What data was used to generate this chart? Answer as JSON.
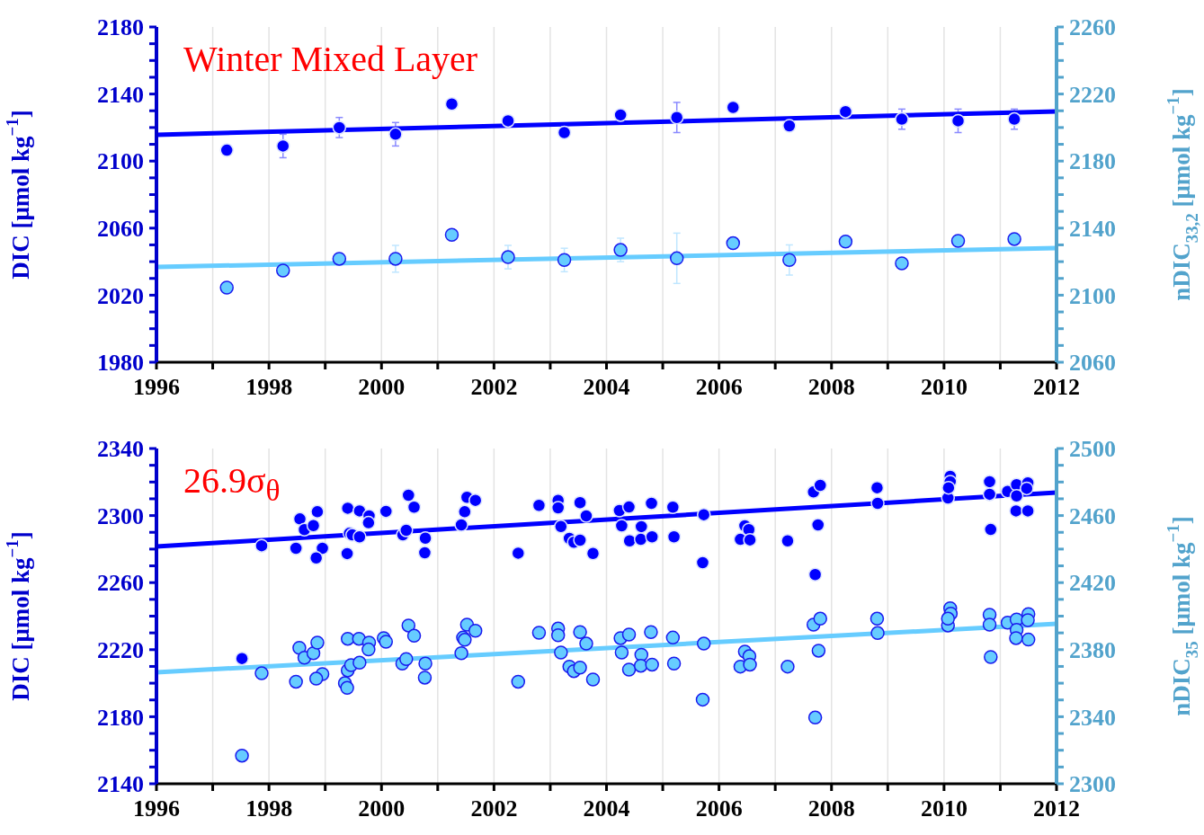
{
  "chart_data": [
    {
      "type": "scatter",
      "annotations": [
        "Winter Mixed Layer"
      ],
      "ylabel": "DIC [μmol kg$^{−1}$]",
      "y2label": "nDIC$_{33,2}$ [μmol kg$^{−1}$]",
      "xlim": [
        1996,
        2012
      ],
      "xticks": [
        1996,
        {
          "value": 1997,
          "label": null
        },
        1998,
        {
          "value": 1999,
          "label": null
        },
        2000,
        {
          "value": 2001,
          "label": null
        },
        2002,
        {
          "value": 2003,
          "label": null
        },
        2004,
        {
          "value": 2005,
          "label": null
        },
        2006,
        {
          "value": 2007,
          "label": null
        },
        2008,
        {
          "value": 2009,
          "label": null
        },
        2010,
        {
          "value": 2011,
          "label": null
        },
        2012
      ],
      "ylim": [
        1980,
        2180
      ],
      "yticks": [
        1980,
        {
          "value": 1990,
          "label": null
        },
        {
          "value": 2000,
          "label": null
        },
        {
          "value": 2010,
          "label": null
        },
        2020,
        {
          "value": 2030,
          "label": null
        },
        {
          "value": 2040,
          "label": null
        },
        {
          "value": 2050,
          "label": null
        },
        2060,
        {
          "value": 2070,
          "label": null
        },
        {
          "value": 2080,
          "label": null
        },
        {
          "value": 2090,
          "label": null
        },
        2100,
        {
          "value": 2110,
          "label": null
        },
        {
          "value": 2120,
          "label": null
        },
        {
          "value": 2130,
          "label": null
        },
        2140,
        {
          "value": 2150,
          "label": null
        },
        {
          "value": 2160,
          "label": null
        },
        {
          "value": 2170,
          "label": null
        },
        2180
      ],
      "y2lim": [
        2060,
        2260
      ],
      "y2ticks": [
        2060,
        {
          "value": 2070,
          "label": null
        },
        {
          "value": 2080,
          "label": null
        },
        {
          "value": 2090,
          "label": null
        },
        2100,
        {
          "value": 2110,
          "label": null
        },
        {
          "value": 2120,
          "label": null
        },
        {
          "value": 2130,
          "label": null
        },
        2140,
        {
          "value": 2150,
          "label": null
        },
        {
          "value": 2160,
          "label": null
        },
        {
          "value": 2170,
          "label": null
        },
        2180,
        {
          "value": 2190,
          "label": null
        },
        {
          "value": 2200,
          "label": null
        },
        {
          "value": 2210,
          "label": null
        },
        2220,
        {
          "value": 2230,
          "label": null
        },
        {
          "value": 2240,
          "label": null
        },
        {
          "value": 2250,
          "label": null
        },
        2260
      ],
      "grid": "x",
      "marker": "circle",
      "series": [
        {
          "color": "#0000ff",
          "x": [
            1997.25,
            1998.25,
            1999.25,
            2000.25,
            2001.25,
            2002.25,
            2003.25,
            2004.25,
            2005.25,
            2006.25,
            2007.25,
            2008.25,
            2009.25,
            2010.25,
            2011.25
          ],
          "values": [
            2106.5,
            2109,
            2120,
            2116,
            2134,
            2124,
            2117,
            2127.5,
            2126,
            2132,
            2121,
            2129.5,
            2125,
            2124,
            2125
          ],
          "errors": [
            null,
            7,
            6,
            7,
            null,
            2,
            null,
            2,
            9,
            null,
            2,
            null,
            6,
            7,
            6
          ]
        },
        {
          "type": "line",
          "marker": "none",
          "color": "#0000ff",
          "x": [
            1996,
            2012
          ],
          "values": [
            2115.7,
            2129.6
          ]
        },
        {
          "axis": "y2",
          "color": "#66ccff",
          "x": [
            1997.25,
            1998.25,
            1999.25,
            2000.25,
            2001.25,
            2002.25,
            2003.25,
            2004.25,
            2005.25,
            2006.25,
            2007.25,
            2008.25,
            2009.25,
            2010.25,
            2011.25
          ],
          "values": [
            2104.5,
            2114.7,
            2121.7,
            2121.7,
            2136,
            2122.7,
            2121,
            2127,
            2122,
            2131,
            2121,
            2132,
            2119,
            2132.4,
            2133.5
          ],
          "errors": [
            null,
            null,
            null,
            8,
            null,
            7,
            7,
            7,
            15,
            null,
            9,
            null,
            null,
            null,
            null
          ]
        },
        {
          "type": "line",
          "marker": "none",
          "axis": "y2",
          "color": "#66ccff",
          "x": [
            1996,
            2012
          ],
          "values": [
            2116.8,
            2128.1
          ]
        }
      ]
    },
    {
      "type": "scatter",
      "annotations": [
        "26.9σ$_{θ}$"
      ],
      "ylabel": "DIC [μmol kg$^{−1}$]",
      "y2label": "nDIC$_{35}$ [μmol kg$^{−1}$]",
      "xlim": [
        1996,
        2012
      ],
      "xticks": [
        1996,
        {
          "value": 1997,
          "label": null
        },
        1998,
        {
          "value": 1999,
          "label": null
        },
        2000,
        {
          "value": 2001,
          "label": null
        },
        2002,
        {
          "value": 2003,
          "label": null
        },
        2004,
        {
          "value": 2005,
          "label": null
        },
        2006,
        {
          "value": 2007,
          "label": null
        },
        2008,
        {
          "value": 2009,
          "label": null
        },
        2010,
        {
          "value": 2011,
          "label": null
        },
        2012
      ],
      "ylim": [
        2140,
        2340
      ],
      "yticks": [
        2140,
        {
          "value": 2150,
          "label": null
        },
        {
          "value": 2160,
          "label": null
        },
        {
          "value": 2170,
          "label": null
        },
        2180,
        {
          "value": 2190,
          "label": null
        },
        {
          "value": 2200,
          "label": null
        },
        {
          "value": 2210,
          "label": null
        },
        2220,
        {
          "value": 2230,
          "label": null
        },
        {
          "value": 2240,
          "label": null
        },
        {
          "value": 2250,
          "label": null
        },
        2260,
        {
          "value": 2270,
          "label": null
        },
        {
          "value": 2280,
          "label": null
        },
        {
          "value": 2290,
          "label": null
        },
        2300,
        {
          "value": 2310,
          "label": null
        },
        {
          "value": 2320,
          "label": null
        },
        {
          "value": 2330,
          "label": null
        },
        2340
      ],
      "y2lim": [
        2300,
        2500
      ],
      "y2ticks": [
        2300,
        {
          "value": 2310,
          "label": null
        },
        {
          "value": 2320,
          "label": null
        },
        {
          "value": 2330,
          "label": null
        },
        2340,
        {
          "value": 2350,
          "label": null
        },
        {
          "value": 2360,
          "label": null
        },
        {
          "value": 2370,
          "label": null
        },
        2380,
        {
          "value": 2390,
          "label": null
        },
        {
          "value": 2400,
          "label": null
        },
        {
          "value": 2410,
          "label": null
        },
        2420,
        {
          "value": 2430,
          "label": null
        },
        {
          "value": 2440,
          "label": null
        },
        {
          "value": 2450,
          "label": null
        },
        2460,
        {
          "value": 2470,
          "label": null
        },
        {
          "value": 2480,
          "label": null
        },
        {
          "value": 2490,
          "label": null
        },
        2500
      ],
      "grid": "x",
      "marker": "circle",
      "series": [
        {
          "color": "#0000ff",
          "x": [
            1997.52,
            1997.87,
            1998.48,
            1998.55,
            1998.63,
            1998.79,
            1998.86,
            1998.95,
            1998.84,
            1999.4,
            1999.39,
            1999.43,
            1999.48,
            1999.61,
            1999.61,
            1999.78,
            1999.77,
            2000.08,
            2000.38,
            2000.44,
            2000.48,
            2000.58,
            2000.78,
            2000.77,
            2001.42,
            2001.48,
            2001.52,
            2001.67,
            2002.43,
            2002.8,
            2003.14,
            2003.14,
            2003.19,
            2003.34,
            2003.42,
            2003.53,
            2003.53,
            2003.64,
            2003.76,
            2004.23,
            2004.4,
            2004.27,
            2004.41,
            2004.62,
            2004.61,
            2004.81,
            2004.8,
            2005.18,
            2005.2,
            2005.73,
            2005.71,
            2006.46,
            2006.53,
            2006.38,
            2006.55,
            2007.22,
            2007.76,
            2007.71,
            2007.68,
            2007.8,
            2008.81,
            2008.82,
            2010.07,
            2010.11,
            2010.11,
            2010.08,
            2010.81,
            2010.81,
            2010.83,
            2011.13,
            2011.29,
            2011.29,
            2011.28,
            2011.49,
            2011.49,
            2011.47
          ],
          "values": [
            2214.7,
            2282,
            2280.5,
            2298,
            2291.6,
            2294,
            2302.3,
            2280.5,
            2274.7,
            2304.4,
            2277.3,
            2289.4,
            2288.5,
            2302.8,
            2287.3,
            2299.8,
            2295.7,
            2302.5,
            2288.5,
            2291.2,
            2312.1,
            2305,
            2286.5,
            2277.8,
            2294.4,
            2302.3,
            2310.9,
            2309.1,
            2277.6,
            2306.1,
            2309.1,
            2304.6,
            2293.5,
            2286.4,
            2284.1,
            2285.3,
            2307.7,
            2299.8,
            2277.4,
            2303,
            2305.1,
            2293.9,
            2284.9,
            2293.4,
            2285.8,
            2287.3,
            2307.3,
            2305,
            2287.3,
            2300.5,
            2271.9,
            2293.9,
            2291.6,
            2285.8,
            2285.5,
            2284.9,
            2294.4,
            2264.8,
            2314.1,
            2318,
            2316.6,
            2307.3,
            2310.5,
            2323.4,
            2320.2,
            2316.6,
            2320.2,
            2312.7,
            2291.7,
            2314.4,
            2318.4,
            2311.7,
            2302.8,
            2302.8,
            2319.5,
            2316.2
          ]
        },
        {
          "type": "line",
          "marker": "none",
          "color": "#0000ff",
          "x": [
            1996,
            2012
          ],
          "values": [
            2281.6,
            2313.7
          ]
        },
        {
          "axis": "y2",
          "color": "#66ccff",
          "x": [
            1997.52,
            1997.87,
            1998.48,
            1998.54,
            1998.63,
            1998.79,
            1998.86,
            1998.95,
            1998.84,
            1999.4,
            1999.35,
            1999.39,
            1999.4,
            1999.46,
            1999.61,
            1999.6,
            1999.78,
            1999.77,
            2000.04,
            2000.08,
            2000.37,
            2000.44,
            2000.48,
            2000.58,
            2000.78,
            2000.77,
            2001.42,
            2001.45,
            2001.48,
            2001.52,
            2001.67,
            2002.43,
            2002.8,
            2003.14,
            2003.14,
            2003.19,
            2003.34,
            2003.42,
            2003.53,
            2003.53,
            2003.64,
            2003.76,
            2004.25,
            2004.4,
            2004.27,
            2004.4,
            2004.62,
            2004.61,
            2004.81,
            2004.79,
            2005.18,
            2005.2,
            2005.73,
            2005.71,
            2006.46,
            2006.54,
            2006.38,
            2006.55,
            2007.22,
            2007.77,
            2007.71,
            2007.68,
            2007.8,
            2008.81,
            2008.82,
            2010.07,
            2010.11,
            2010.12,
            2010.07,
            2010.81,
            2010.81,
            2010.83,
            2011.13,
            2011.29,
            2011.29,
            2011.28,
            2011.5,
            2011.5,
            2011.49
          ],
          "values": [
            2316.8,
            2365.9,
            2360.9,
            2381.1,
            2375.2,
            2377.9,
            2384.2,
            2365.4,
            2362.7,
            2386.5,
            2360,
            2357.2,
            2367.6,
            2370.8,
            2372.2,
            2386.5,
            2384.2,
            2380.1,
            2386.9,
            2384.7,
            2371.7,
            2374.4,
            2394.4,
            2388.3,
            2371.7,
            2363.3,
            2377.9,
            2387.2,
            2385.9,
            2394.9,
            2391.3,
            2360.9,
            2390.1,
            2392.6,
            2388.6,
            2378.3,
            2369.9,
            2367.2,
            2369.3,
            2390.5,
            2383.6,
            2362.2,
            2386.9,
            2389,
            2378.3,
            2368.1,
            2377,
            2370.4,
            2371.1,
            2390.5,
            2387.2,
            2371.7,
            2383.6,
            2350.2,
            2378.8,
            2376.1,
            2369.9,
            2371.1,
            2369.9,
            2379.4,
            2339.5,
            2394.9,
            2398.5,
            2398.5,
            2389.9,
            2394.4,
            2404.7,
            2401.5,
            2398.5,
            2400.8,
            2394.9,
            2375.6,
            2396.1,
            2398,
            2391.8,
            2386.9,
            2386,
            2401.2,
            2397.6
          ]
        },
        {
          "type": "line",
          "marker": "none",
          "axis": "y2",
          "color": "#66ccff",
          "x": [
            1996,
            2012
          ],
          "values": [
            2366.5,
            2395.4
          ]
        }
      ]
    }
  ]
}
